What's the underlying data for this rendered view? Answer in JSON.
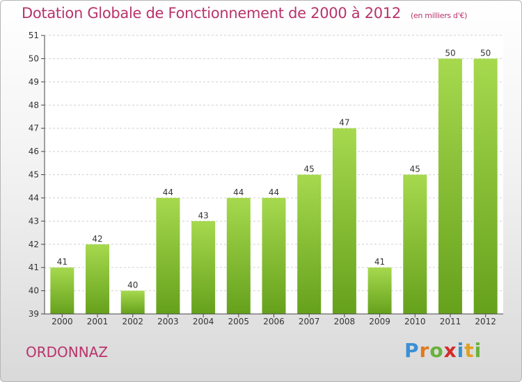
{
  "title": "Dotation Globale de Fonctionnement de 2000 à 2012",
  "unit_label": "(en milliers d'€)",
  "commune": "ORDONNAZ",
  "logo": {
    "text": "Proxiti",
    "letters": [
      "P",
      "r",
      "o",
      "x",
      "i",
      "t",
      "i"
    ],
    "colors": [
      "#3a8fd6",
      "#e07a1f",
      "#6ab23a",
      "#d42a2a",
      "#3a8fd6",
      "#e0a11f",
      "#6ab23a"
    ]
  },
  "colors": {
    "bar_light": "#a6d94e",
    "bar_dark": "#66a11c",
    "axis": "#444444",
    "grid": "#d0d0d0",
    "title": "#b8336a"
  },
  "chart_data": {
    "type": "bar",
    "categories": [
      "2000",
      "2001",
      "2002",
      "2003",
      "2004",
      "2005",
      "2006",
      "2007",
      "2008",
      "2009",
      "2010",
      "2011",
      "2012"
    ],
    "values": [
      41,
      42,
      40,
      44,
      43,
      44,
      44,
      45,
      47,
      41,
      45,
      50,
      50
    ],
    "data_labels": [
      "41",
      "42",
      "40",
      "44",
      "43",
      "44",
      "44",
      "45",
      "47",
      "41",
      "45",
      "50",
      "50"
    ],
    "yticks": [
      "39",
      "40",
      "41",
      "42",
      "43",
      "44",
      "45",
      "46",
      "47",
      "48",
      "49",
      "50",
      "51"
    ],
    "ylim": [
      39,
      51
    ],
    "grid": true
  }
}
